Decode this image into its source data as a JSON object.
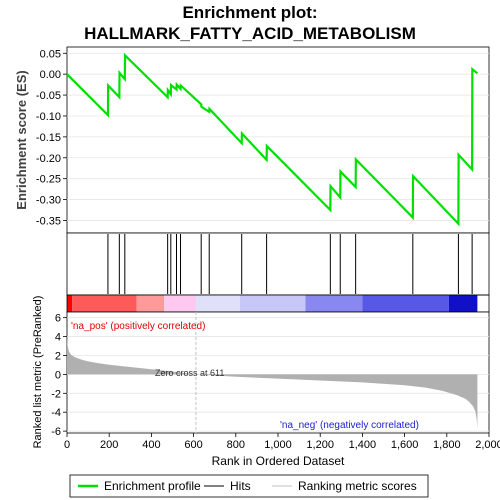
{
  "title_line1": "Enrichment plot:",
  "title_line2": "HALLMARK_FATTY_ACID_METABOLISM",
  "chart_data": {
    "type": "line",
    "es_panel": {
      "ylabel": "Enrichment score (ES)",
      "ylim": [
        -0.38,
        0.065
      ],
      "yticks": [
        0.05,
        0.0,
        -0.05,
        -0.1,
        -0.15,
        -0.2,
        -0.25,
        -0.3,
        -0.35
      ],
      "ytick_labels": [
        "0.05",
        "0.00",
        "-0.05",
        "-0.10",
        "-0.15",
        "-0.20",
        "-0.25",
        "-0.30",
        "-0.35"
      ],
      "series": [
        {
          "name": "Enrichment profile",
          "color": "#00e000",
          "x": [
            0,
            194,
            195,
            248,
            249,
            274,
            275,
            477,
            478,
            492,
            493,
            519,
            520,
            538,
            539,
            636,
            637,
            674,
            675,
            828,
            829,
            946,
            947,
            1248,
            1249,
            1295,
            1296,
            1368,
            1369,
            1639,
            1640,
            1855,
            1856,
            1920,
            1921,
            1945
          ],
          "y": [
            0.0,
            -0.098,
            -0.027,
            -0.055,
            0.003,
            -0.012,
            0.045,
            -0.055,
            -0.038,
            -0.048,
            -0.026,
            -0.037,
            -0.025,
            -0.035,
            -0.027,
            -0.072,
            -0.078,
            -0.09,
            -0.083,
            -0.165,
            -0.142,
            -0.205,
            -0.172,
            -0.325,
            -0.268,
            -0.295,
            -0.233,
            -0.27,
            -0.204,
            -0.343,
            -0.244,
            -0.358,
            -0.193,
            -0.228,
            0.012,
            0.002
          ]
        }
      ]
    },
    "hits": [
      194,
      248,
      274,
      477,
      492,
      519,
      538,
      636,
      674,
      828,
      946,
      1248,
      1295,
      1368,
      1639,
      1855,
      1920
    ],
    "ranking_bar": {
      "segments": [
        {
          "from": 0,
          "to": 25,
          "color": "#ff0000"
        },
        {
          "from": 25,
          "to": 330,
          "color": "#ff5a5a"
        },
        {
          "from": 330,
          "to": 460,
          "color": "#ff9a9a"
        },
        {
          "from": 460,
          "to": 611,
          "color": "#ffc8f0"
        },
        {
          "from": 611,
          "to": 820,
          "color": "#e0e0fb"
        },
        {
          "from": 820,
          "to": 1130,
          "color": "#c8c8f8"
        },
        {
          "from": 1130,
          "to": 1400,
          "color": "#8888f0"
        },
        {
          "from": 1400,
          "to": 1810,
          "color": "#5858e8"
        },
        {
          "from": 1810,
          "to": 1945,
          "color": "#1010c8"
        }
      ]
    },
    "metric_panel": {
      "ylabel": "Ranked list metric (PreRanked)",
      "xlabel": "Rank in Ordered Dataset",
      "ylim": [
        -6.2,
        6.6
      ],
      "yticks": [
        6,
        4,
        2,
        0,
        -2,
        -4,
        -6
      ],
      "ytick_labels": [
        "6",
        "4",
        "2",
        "0",
        "-2",
        "-4",
        "-6"
      ],
      "xlim": [
        0,
        2000
      ],
      "xticks": [
        0,
        200,
        400,
        600,
        800,
        1000,
        1200,
        1400,
        1600,
        1800,
        2000
      ],
      "xtick_labels": [
        "0",
        "200",
        "400",
        "600",
        "800",
        "1,000",
        "1,200",
        "1,400",
        "1,600",
        "1,800",
        "2,000"
      ],
      "n_genes": 1945,
      "zero_cross": 611,
      "metric_curve": {
        "x": [
          0,
          2,
          5,
          10,
          20,
          40,
          70,
          100,
          150,
          200,
          300,
          400,
          500,
          611,
          700,
          800,
          1000,
          1200,
          1400,
          1600,
          1700,
          1780,
          1850,
          1890,
          1910,
          1925,
          1935,
          1942,
          1945
        ],
        "y": [
          4.2,
          3.3,
          2.8,
          2.4,
          2.05,
          1.8,
          1.55,
          1.38,
          1.18,
          1.02,
          0.78,
          0.55,
          0.3,
          0.0,
          -0.12,
          -0.25,
          -0.45,
          -0.65,
          -0.85,
          -1.15,
          -1.4,
          -1.75,
          -2.2,
          -2.6,
          -3.0,
          -3.4,
          -3.9,
          -4.8,
          -5.8
        ]
      }
    },
    "annotations": {
      "pos_label": "'na_pos' (positively correlated)",
      "neg_label": "'na_neg' (negatively correlated)",
      "zero_cross_label": "Zero cross at 611"
    },
    "legend": {
      "items": [
        {
          "label": "Enrichment profile",
          "color": "#00e000",
          "kind": "thick-line"
        },
        {
          "label": "Hits",
          "color": "#000000",
          "kind": "thin-line"
        },
        {
          "label": "Ranking metric scores",
          "color": "#c0c0c0",
          "kind": "thin-line"
        }
      ]
    },
    "colors": {
      "es_line": "#00e000",
      "hit_line": "#000000",
      "metric_fill": "#b0b0b0",
      "zero_cross_line": "#c0c0c0"
    }
  }
}
